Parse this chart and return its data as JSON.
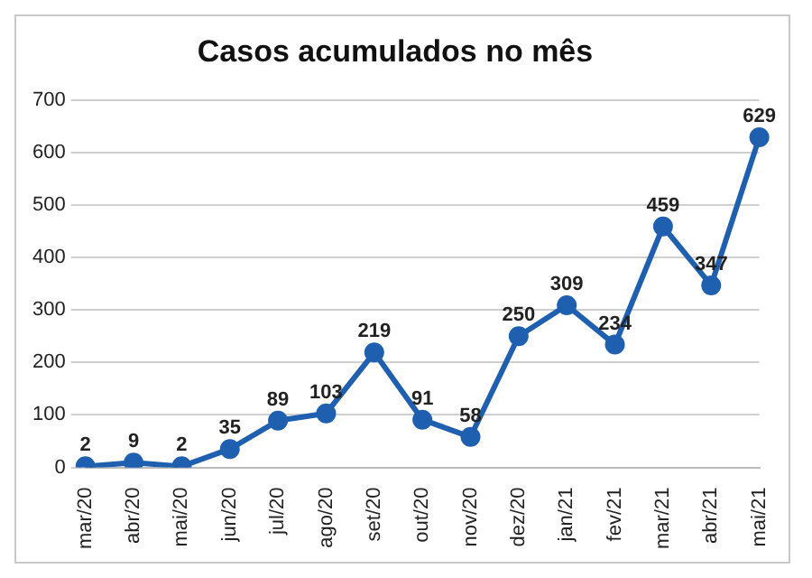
{
  "chart_data": {
    "type": "line",
    "title": "Casos acumulados no mês",
    "categories": [
      "mar/20",
      "abr/20",
      "mai/20",
      "jun/20",
      "jul/20",
      "ago/20",
      "set/20",
      "out/20",
      "nov/20",
      "dez/20",
      "jan/21",
      "fev/21",
      "mar/21",
      "abr/21",
      "mai/21"
    ],
    "series": [
      {
        "color": "#1f5fb0",
        "values": [
          2,
          9,
          2,
          35,
          89,
          103,
          219,
          91,
          58,
          250,
          309,
          234,
          459,
          347,
          629
        ]
      }
    ],
    "ylim": [
      0,
      700
    ],
    "yticks": [
      0,
      100,
      200,
      300,
      400,
      500,
      600,
      700
    ],
    "grid": "y",
    "legend": false,
    "marker": "circle",
    "line_style": "solid",
    "data_labels": true
  }
}
